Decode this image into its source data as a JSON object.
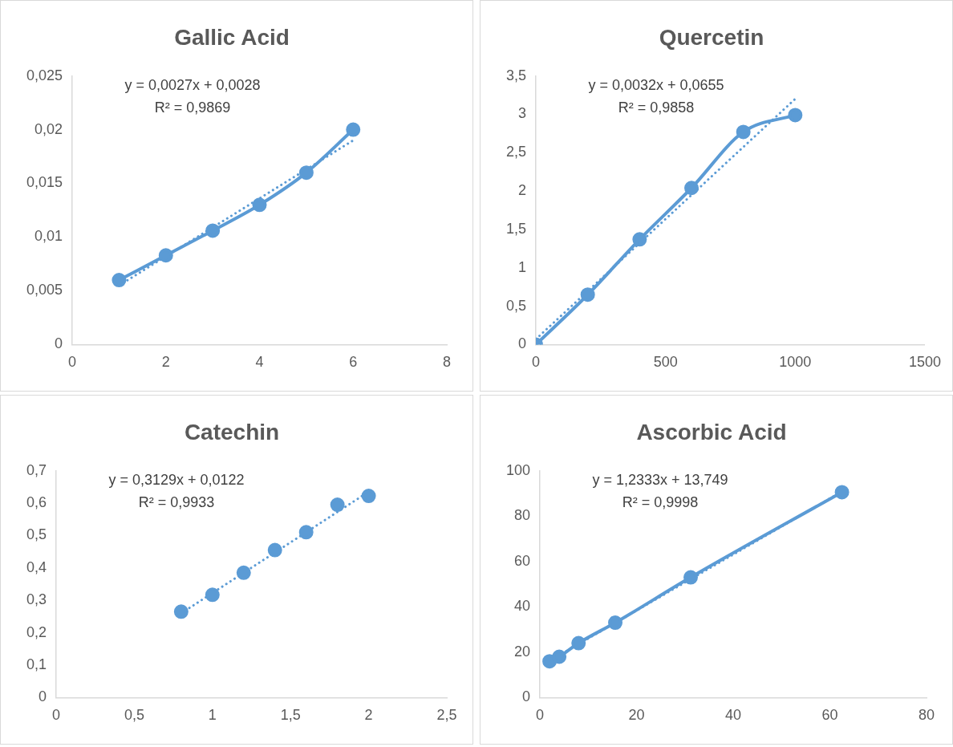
{
  "chart_data": [
    {
      "type": "line",
      "title": "Gallic Acid",
      "annotations": [
        "y = 0,0027x + 0,0028",
        "R² = 0,9869"
      ],
      "xlim": [
        0,
        8
      ],
      "xticks": [
        0,
        2,
        4,
        6,
        8
      ],
      "ylim": [
        0,
        0.025
      ],
      "yticks": [
        0,
        {
          "value": 0.005,
          "label": "0,005"
        },
        {
          "value": 0.01,
          "label": "0,01"
        },
        {
          "value": 0.015,
          "label": "0,015"
        },
        {
          "value": 0.02,
          "label": "0,02"
        },
        {
          "value": 0.025,
          "label": "0,025"
        }
      ],
      "series": [
        {
          "color": "#5b9bd5",
          "marker": "circle",
          "x": [
            1,
            2,
            3,
            4,
            5,
            6
          ],
          "values": [
            0.006,
            0.0083,
            0.0106,
            0.013,
            0.016,
            0.02
          ]
        },
        {
          "color": "#5b9bd5",
          "marker": "none",
          "line_style": "dotted",
          "x": [
            1,
            6
          ],
          "values": [
            0.0055,
            0.019
          ]
        }
      ]
    },
    {
      "type": "line",
      "title": "Quercetin",
      "annotations": [
        "y = 0,0032x + 0,0655",
        "R² = 0,9858"
      ],
      "xlim": [
        0,
        1500
      ],
      "xticks": [
        0,
        500,
        1000,
        1500
      ],
      "ylim": [
        0,
        3.5
      ],
      "yticks": [
        0,
        {
          "value": 0.5,
          "label": "0,5"
        },
        1,
        {
          "value": 1.5,
          "label": "1,5"
        },
        2,
        {
          "value": 2.5,
          "label": "2,5"
        },
        3,
        {
          "value": 3.5,
          "label": "3,5"
        }
      ],
      "series": [
        {
          "color": "#5b9bd5",
          "marker": "circle",
          "x": [
            0,
            200,
            400,
            600,
            800,
            1000
          ],
          "values": [
            0,
            0.65,
            1.37,
            2.04,
            2.77,
            2.99
          ]
        },
        {
          "color": "#5b9bd5",
          "marker": "none",
          "line_style": "dotted",
          "x": [
            0,
            1000
          ],
          "values": [
            0.07,
            3.2
          ]
        }
      ]
    },
    {
      "type": "scatter",
      "title": "Catechin",
      "annotations": [
        "y = 0,3129x + 0,0122",
        "R² = 0,9933"
      ],
      "xlim": [
        0,
        2.5
      ],
      "xticks": [
        0,
        {
          "value": 0.5,
          "label": "0,5"
        },
        1,
        {
          "value": 1.5,
          "label": "1,5"
        },
        2,
        {
          "value": 2.5,
          "label": "2,5"
        }
      ],
      "ylim": [
        0,
        0.7
      ],
      "yticks": [
        0,
        {
          "value": 0.1,
          "label": "0,1"
        },
        {
          "value": 0.2,
          "label": "0,2"
        },
        {
          "value": 0.3,
          "label": "0,3"
        },
        {
          "value": 0.4,
          "label": "0,4"
        },
        {
          "value": 0.5,
          "label": "0,5"
        },
        {
          "value": 0.6,
          "label": "0,6"
        },
        {
          "value": 0.7,
          "label": "0,7"
        }
      ],
      "series": [
        {
          "color": "#5b9bd5",
          "marker": "circle",
          "x": [
            0.8,
            1,
            1.2,
            1.4,
            1.6,
            1.8,
            2
          ],
          "values": [
            0.265,
            0.317,
            0.385,
            0.455,
            0.51,
            0.595,
            0.622
          ]
        },
        {
          "type": "line",
          "color": "#5b9bd5",
          "marker": "none",
          "line_style": "dotted",
          "x": [
            0.8,
            2
          ],
          "values": [
            0.26,
            0.635
          ]
        }
      ]
    },
    {
      "type": "line",
      "title": "Ascorbic Acid",
      "annotations": [
        "y = 1,2333x + 13,749",
        "R² = 0,9998"
      ],
      "xlim": [
        0,
        80
      ],
      "xticks": [
        0,
        20,
        40,
        60,
        80
      ],
      "ylim": [
        0,
        100
      ],
      "yticks": [
        0,
        20,
        40,
        60,
        80,
        100
      ],
      "series": [
        {
          "color": "#5b9bd5",
          "marker": "circle",
          "x": [
            2,
            4,
            8,
            15.6,
            31.2,
            62.5
          ],
          "values": [
            16,
            18,
            24,
            33,
            53,
            90.5
          ]
        },
        {
          "color": "#5b9bd5",
          "line_style": "dotted",
          "x": [
            2,
            62.5
          ],
          "values": [
            16.2,
            90.8
          ]
        }
      ]
    }
  ]
}
